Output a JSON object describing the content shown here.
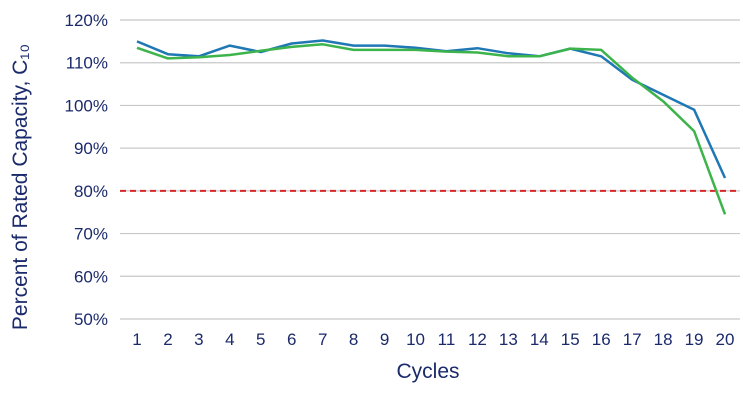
{
  "chart_data": {
    "type": "line",
    "title": "",
    "xlabel": "Cycles",
    "ylabel": "Percent of Rated Capacity, C₁₀",
    "x": [
      1,
      2,
      3,
      4,
      5,
      6,
      7,
      8,
      9,
      10,
      11,
      12,
      13,
      14,
      15,
      16,
      17,
      18,
      19,
      20
    ],
    "y_ticks": [
      "50%",
      "60%",
      "70%",
      "80%",
      "90%",
      "100%",
      "110%",
      "120%"
    ],
    "ylim": [
      45,
      120
    ],
    "grid": true,
    "legend": "none",
    "series": [
      {
        "color": "#1f77b4",
        "values": [
          115,
          112,
          111.5,
          114,
          112.5,
          114.5,
          115.2,
          114,
          114,
          113.5,
          112.7,
          113.4,
          112.2,
          111.5,
          113.3,
          111.5,
          106,
          102.5,
          99,
          83
        ]
      },
      {
        "color": "#3cb44b",
        "values": [
          113.5,
          111,
          111.3,
          111.8,
          112.8,
          113.7,
          114.3,
          113,
          113,
          113,
          112.6,
          112.4,
          111.5,
          111.5,
          113.3,
          113,
          106.5,
          101,
          94,
          74.5
        ]
      }
    ],
    "reference_line": {
      "value": 80,
      "style": "dashed",
      "color": "#d62728"
    }
  },
  "colors": {
    "text": "#1b2a6b",
    "grid": "#c8c8c8"
  }
}
